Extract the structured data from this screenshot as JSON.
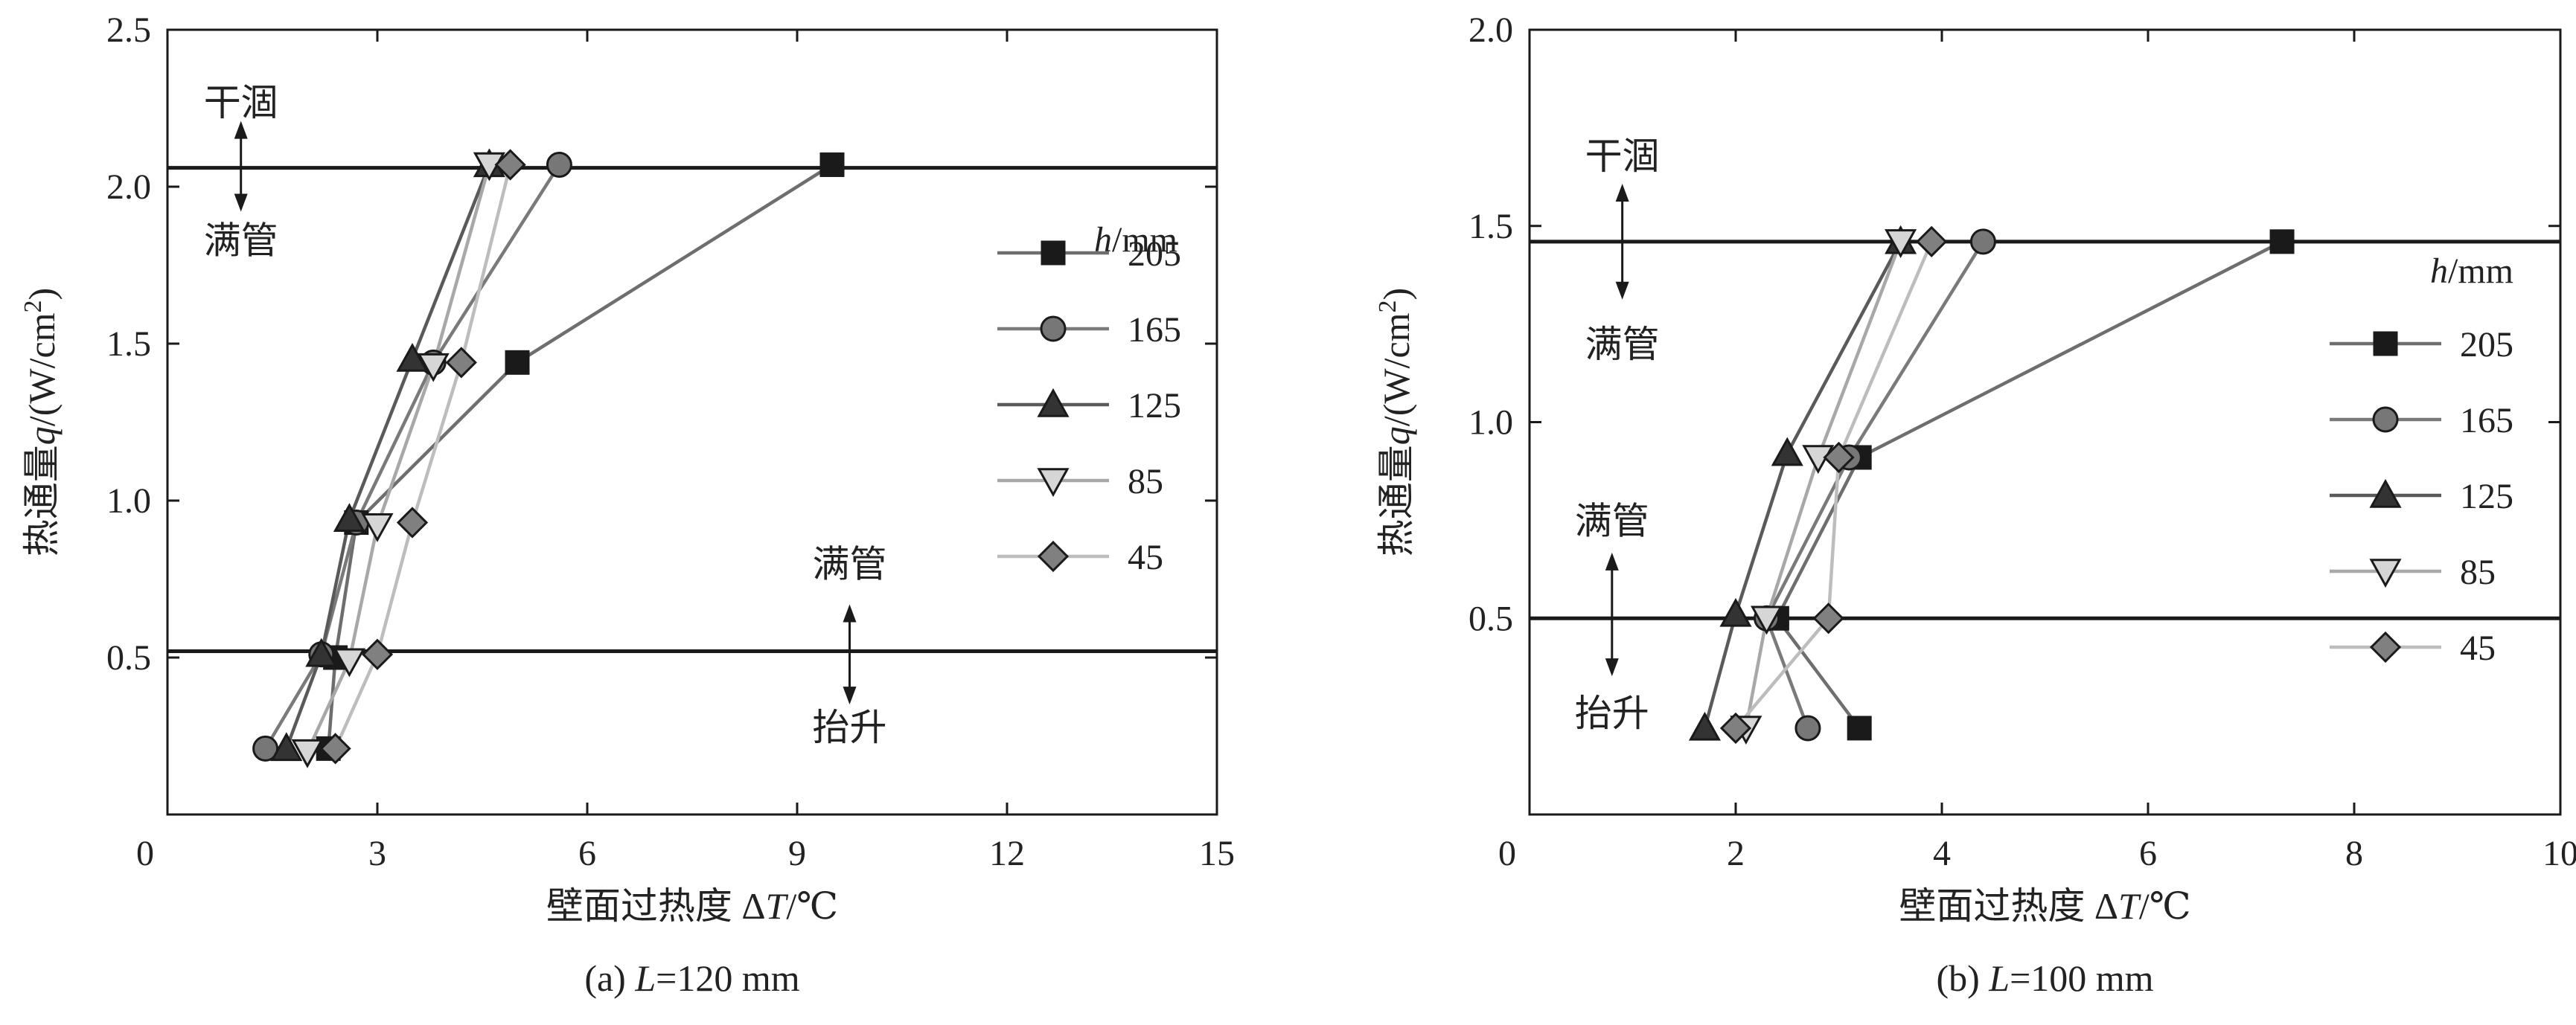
{
  "chart_data": [
    {
      "type": "line",
      "caption_prefix": "(a) ",
      "caption_var": "L",
      "caption_suffix": "=120 mm",
      "xlabel_text": "壁面过热度 Δ",
      "xlabel_var": "T",
      "xlabel_unit": "/℃",
      "ylabel_text": "热通量",
      "ylabel_var": "q",
      "ylabel_unit": "/(W/cm",
      "ylabel_sup": "2",
      "ylabel_close": ")",
      "xlim": [
        0,
        15
      ],
      "ylim": [
        0,
        2.5
      ],
      "xticks": [
        "0",
        "3",
        "6",
        "9",
        "12",
        "15"
      ],
      "yticks": [
        "0.5",
        "1.0",
        "1.5",
        "2.0",
        "2.5"
      ],
      "hlines": [
        2.06,
        0.52
      ],
      "region_labels": [
        {
          "text": "干涸",
          "x": 1.05,
          "y": 2.27
        },
        {
          "text": "满管",
          "x": 1.05,
          "y": 1.83
        },
        {
          "text": "满管",
          "x": 9.75,
          "y": 0.8
        },
        {
          "text": "抬升",
          "x": 9.75,
          "y": 0.28
        }
      ],
      "arrows": [
        {
          "x": 1.05,
          "y1": 2.2,
          "y2": 1.93
        },
        {
          "x": 9.75,
          "y1": 0.66,
          "y2": 0.36
        }
      ],
      "legend_title_var": "h",
      "legend_title_unit": "/mm",
      "series": [
        {
          "name": "205",
          "marker": "square",
          "line_color": "#6e6e6e",
          "marker_fill": "#1a1a1a",
          "points": [
            [
              2.3,
              0.21
            ],
            [
              2.4,
              0.5
            ],
            [
              2.7,
              0.93
            ],
            [
              5.0,
              1.44
            ],
            [
              9.5,
              2.07
            ]
          ]
        },
        {
          "name": "165",
          "marker": "circle",
          "line_color": "#7a7a7a",
          "marker_fill": "#777777",
          "points": [
            [
              1.4,
              0.21
            ],
            [
              2.2,
              0.51
            ],
            [
              2.7,
              0.93
            ],
            [
              3.8,
              1.44
            ],
            [
              5.6,
              2.07
            ]
          ]
        },
        {
          "name": "125",
          "marker": "triangle",
          "line_color": "#5a5a5a",
          "marker_fill": "#333333",
          "points": [
            [
              1.7,
              0.21
            ],
            [
              2.2,
              0.51
            ],
            [
              2.6,
              0.94
            ],
            [
              3.5,
              1.45
            ],
            [
              4.6,
              2.07
            ]
          ]
        },
        {
          "name": "85",
          "marker": "triangle-down",
          "line_color": "#a8a8a8",
          "marker_fill": "#d6d6d6",
          "points": [
            [
              2.0,
              0.2
            ],
            [
              2.6,
              0.49
            ],
            [
              3.0,
              0.92
            ],
            [
              3.8,
              1.43
            ],
            [
              4.6,
              2.07
            ]
          ]
        },
        {
          "name": "45",
          "marker": "diamond",
          "line_color": "#bdbdbd",
          "marker_fill": "#808080",
          "points": [
            [
              2.4,
              0.21
            ],
            [
              3.0,
              0.51
            ],
            [
              3.5,
              0.93
            ],
            [
              4.2,
              1.44
            ],
            [
              4.9,
              2.07
            ]
          ]
        }
      ]
    },
    {
      "type": "line",
      "caption_prefix": "(b) ",
      "caption_var": "L",
      "caption_suffix": "=100 mm",
      "xlabel_text": "壁面过热度 Δ",
      "xlabel_var": "T",
      "xlabel_unit": "/℃",
      "ylabel_text": "热通量",
      "ylabel_var": "q",
      "ylabel_unit": "/(W/cm",
      "ylabel_sup": "2",
      "ylabel_close": ")",
      "xlim": [
        0,
        10
      ],
      "ylim": [
        0,
        2.0
      ],
      "xticks": [
        "0",
        "2",
        "4",
        "6",
        "8",
        "10"
      ],
      "yticks": [
        "0.5",
        "1.0",
        "1.5",
        "2.0"
      ],
      "hlines": [
        1.46,
        0.5
      ],
      "region_labels": [
        {
          "text": "干涸",
          "x": 0.9,
          "y": 1.68
        },
        {
          "text": "满管",
          "x": 0.9,
          "y": 1.2
        },
        {
          "text": "满管",
          "x": 0.8,
          "y": 0.75
        },
        {
          "text": "抬升",
          "x": 0.8,
          "y": 0.26
        }
      ],
      "arrows": [
        {
          "x": 0.9,
          "y1": 1.6,
          "y2": 1.32
        },
        {
          "x": 0.8,
          "y1": 0.66,
          "y2": 0.36
        }
      ],
      "legend_title_var": "h",
      "legend_title_unit": "/mm",
      "series": [
        {
          "name": "205",
          "marker": "square",
          "line_color": "#6e6e6e",
          "marker_fill": "#1a1a1a",
          "points": [
            [
              3.2,
              0.22
            ],
            [
              2.4,
              0.5
            ],
            [
              3.2,
              0.91
            ],
            [
              7.3,
              1.46
            ]
          ]
        },
        {
          "name": "165",
          "marker": "circle",
          "line_color": "#7a7a7a",
          "marker_fill": "#777777",
          "points": [
            [
              2.7,
              0.22
            ],
            [
              2.3,
              0.5
            ],
            [
              3.1,
              0.91
            ],
            [
              4.4,
              1.46
            ]
          ]
        },
        {
          "name": "125",
          "marker": "triangle",
          "line_color": "#5a5a5a",
          "marker_fill": "#333333",
          "points": [
            [
              1.7,
              0.22
            ],
            [
              2.0,
              0.51
            ],
            [
              2.5,
              0.92
            ],
            [
              3.6,
              1.46
            ]
          ]
        },
        {
          "name": "85",
          "marker": "triangle-down",
          "line_color": "#a8a8a8",
          "marker_fill": "#d6d6d6",
          "points": [
            [
              2.1,
              0.22
            ],
            [
              2.3,
              0.5
            ],
            [
              2.8,
              0.91
            ],
            [
              3.6,
              1.46
            ]
          ]
        },
        {
          "name": "45",
          "marker": "diamond",
          "line_color": "#bdbdbd",
          "marker_fill": "#808080",
          "points": [
            [
              2.0,
              0.22
            ],
            [
              2.9,
              0.5
            ],
            [
              3.0,
              0.91
            ],
            [
              3.9,
              1.46
            ]
          ]
        }
      ]
    }
  ]
}
